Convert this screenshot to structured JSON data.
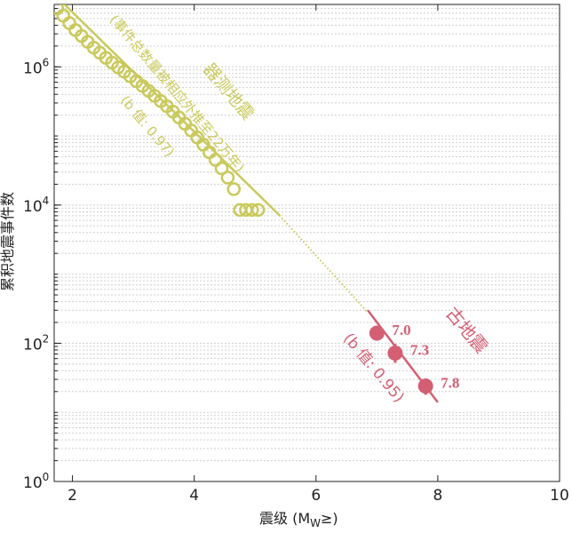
{
  "chart_data": {
    "type": "scatter",
    "title": "",
    "xlabel": "震级 (M",
    "xlabel_sub": "W",
    "xlabel_suffix": "≥)",
    "ylabel": "累积地震事件数",
    "x_ticks": [
      2,
      4,
      6,
      8,
      10
    ],
    "y_ticks": [
      {
        "exp": 0,
        "label": "10",
        "sup": "0"
      },
      {
        "exp": 2,
        "label": "10",
        "sup": "2"
      },
      {
        "exp": 4,
        "label": "10",
        "sup": "4"
      },
      {
        "exp": 6,
        "label": "10",
        "sup": "6"
      }
    ],
    "xlim": [
      1.7,
      10
    ],
    "ylim": [
      1,
      8000000
    ],
    "yscale": "log",
    "grid": "y-minor",
    "colors": {
      "instrumental": "#c9c95c",
      "paleo": "#d45f73",
      "axis": "#222222",
      "grid": "#cfcfcf"
    },
    "series": [
      {
        "name": "器测地震",
        "marker": "open-circle",
        "x": [
          1.75,
          1.85,
          1.95,
          2.05,
          2.15,
          2.25,
          2.35,
          2.45,
          2.55,
          2.65,
          2.75,
          2.85,
          2.95,
          3.05,
          3.15,
          3.25,
          3.35,
          3.45,
          3.55,
          3.65,
          3.75,
          3.85,
          3.95,
          4.05,
          4.15,
          4.25,
          4.35,
          4.45,
          4.55,
          4.65,
          4.75,
          4.85,
          4.95,
          5.05
        ],
        "y": [
          7000000,
          5500000,
          4300000,
          3400000,
          2800000,
          2300000,
          1900000,
          1600000,
          1350000,
          1150000,
          980000,
          850000,
          730000,
          620000,
          530000,
          450000,
          380000,
          320000,
          270000,
          225000,
          185000,
          150000,
          120000,
          95000,
          75000,
          58000,
          45000,
          34000,
          25000,
          17000,
          8500,
          8500,
          8500,
          8500
        ]
      },
      {
        "name": "古地震",
        "marker": "filled-circle",
        "x": [
          7.0,
          7.3,
          7.8
        ],
        "y": [
          140,
          72,
          24
        ],
        "point_labels": [
          "7.0",
          "7.3",
          "7.8"
        ],
        "y_err_low": [
          110,
          52,
          18
        ],
        "y_err_high": [
          180,
          98,
          31
        ]
      }
    ],
    "fit_lines": [
      {
        "series": "器测地震",
        "b": 0.97,
        "x": [
          1.8,
          5.4
        ],
        "y": [
          9200000,
          7100
        ],
        "style": "solid"
      },
      {
        "series": "器测地震",
        "b": 0.97,
        "x": [
          5.4,
          6.85
        ],
        "y": [
          7100,
          280
        ],
        "style": "dotted"
      },
      {
        "series": "古地震",
        "b": 0.95,
        "x": [
          6.85,
          8.0
        ],
        "y": [
          300,
          14
        ],
        "style": "solid"
      }
    ],
    "annotations": [
      {
        "text": "器测地震",
        "series": "器测地震"
      },
      {
        "text": "(事件总数量被相应外推至22万年)",
        "series": "器测地震"
      },
      {
        "text": "(b 值: 0.97)",
        "series": "器测地震"
      },
      {
        "text": "古地震",
        "series": "古地震"
      },
      {
        "text": "(b 值: 0.95)",
        "series": "古地震"
      }
    ]
  }
}
